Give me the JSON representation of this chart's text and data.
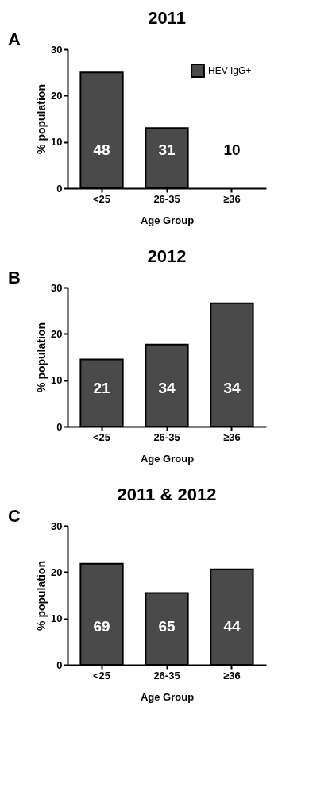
{
  "chart_data": [
    {
      "type": "bar",
      "title": "2011",
      "xlabel": "Age Group",
      "ylabel": "% population",
      "categories": [
        "<25",
        "26-35",
        "≥36"
      ],
      "series": [
        {
          "name": "HEV IgG+",
          "color": "#4a4a4a",
          "values": [
            25,
            13,
            0
          ]
        }
      ],
      "ylim": [
        0,
        30
      ],
      "yticks": [
        0,
        10,
        20,
        30
      ],
      "grid": false,
      "legend": "top right",
      "annotations": [
        "A",
        "48",
        "31",
        "10"
      ]
    },
    {
      "type": "bar",
      "title": "2012",
      "xlabel": "Age Group",
      "ylabel": "% population",
      "categories": [
        "<25",
        "26-35",
        "≥36"
      ],
      "series": [
        {
          "color": "#4a4a4a",
          "values": [
            14.5,
            17.7,
            26.6
          ]
        }
      ],
      "ylim": [
        0,
        30
      ],
      "yticks": [
        0,
        10,
        20,
        30
      ],
      "grid": false,
      "legend": false,
      "annotations": [
        "B",
        "21",
        "34",
        "34"
      ]
    },
    {
      "type": "bar",
      "title": "2011 & 2012",
      "xlabel": "Age Group",
      "ylabel": "% population",
      "categories": [
        "<25",
        "26-35",
        "≥36"
      ],
      "series": [
        {
          "color": "#4a4a4a",
          "values": [
            21.8,
            15.5,
            20.6
          ]
        }
      ],
      "ylim": [
        0,
        30
      ],
      "yticks": [
        0,
        10,
        20,
        30
      ],
      "grid": false,
      "legend": false,
      "annotations": [
        "C",
        "69",
        "65",
        "44"
      ]
    }
  ]
}
